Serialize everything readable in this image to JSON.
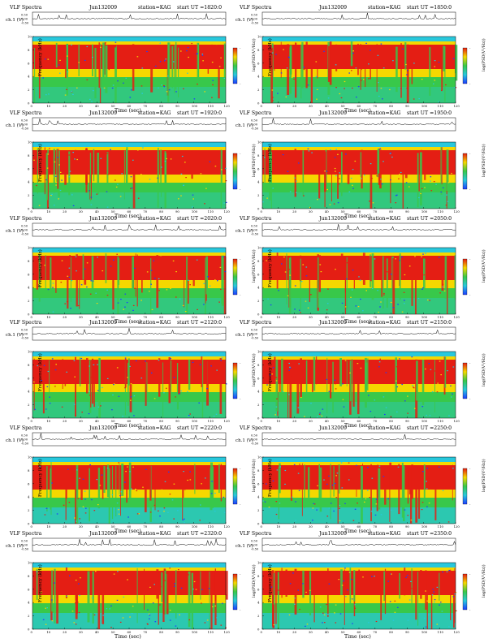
{
  "page": {
    "common": {
      "ch_axis_label": "ch.1 (V)",
      "ch_ticks": [
        "0.50",
        "0.00",
        "-0.50"
      ],
      "freq_axis_label": "Frequency (kHz)",
      "freq_ticks": [
        "0",
        "2",
        "4",
        "6",
        "8",
        "10"
      ],
      "time_axis_label": "Time (sec)",
      "time_ticks": [
        "0",
        "10",
        "20",
        "30",
        "40",
        "50",
        "60",
        "70",
        "80",
        "90",
        "100",
        "110",
        "120"
      ],
      "colorbar_label": "log(PSD(V²/Hz))",
      "colorbar_ticks": [
        "-",
        "-"
      ],
      "panel_prefix": "VLF Spectra",
      "station_text": "station=KAG",
      "colors": {
        "saturated": "#e41e14",
        "high": "#f5d800",
        "mid": "#38c84a",
        "low": "#28c8dc",
        "very_low": "#1e3cff",
        "trace": "#000000"
      }
    }
  },
  "panels": [
    {
      "title": "VLF Spectra",
      "date": "Jun132009",
      "station": "station=KAG",
      "start": "start UT =1820:0",
      "ch_label": "ch.1 (V)",
      "freq_label": "Frequency (kHz)",
      "time_label": "Time (sec)",
      "colorbar_label": "log(PSD(V²/Hz))"
    },
    {
      "title": "VLF Spectra",
      "date": "Jun132009",
      "station": "station=KAG",
      "start": "start UT =1850:0",
      "ch_label": "ch.1 (V)",
      "freq_label": "Frequency (kHz)",
      "time_label": "Time (sec)",
      "colorbar_label": "log(PSD(V²/Hz))"
    },
    {
      "title": "VLF Spectra",
      "date": "Jun132009",
      "station": "station=KAG",
      "start": "start UT =1920:0",
      "ch_label": "ch.1 (V)",
      "freq_label": "Frequency (kHz)",
      "time_label": "Time (sec)",
      "colorbar_label": "log(PSD(V²/Hz))"
    },
    {
      "title": "VLF Spectra",
      "date": "Jun132009",
      "station": "station=KAG",
      "start": "start UT =1950:0",
      "ch_label": "ch.1 (V)",
      "freq_label": "Frequency (kHz)",
      "time_label": "Time (sec)",
      "colorbar_label": "log(PSD(V²/Hz))"
    },
    {
      "title": "VLF Spectra",
      "date": "Jun132009",
      "station": "station=KAG",
      "start": "start UT =2020:0",
      "ch_label": "ch.1 (V)",
      "freq_label": "Frequency (kHz)",
      "time_label": "Time (sec)",
      "colorbar_label": "log(PSD(V²/Hz))"
    },
    {
      "title": "VLF Spectra",
      "date": "Jun132009",
      "station": "station=KAG",
      "start": "start UT =2050:0",
      "ch_label": "ch.1 (V)",
      "freq_label": "Frequency (kHz)",
      "time_label": "Time (sec)",
      "colorbar_label": "log(PSD(V²/Hz))"
    },
    {
      "title": "VLF Spectra",
      "date": "Jun132009",
      "station": "station=KAG",
      "start": "start UT =2120:0",
      "ch_label": "ch.1 (V)",
      "freq_label": "Frequency (kHz)",
      "time_label": "Time (sec)",
      "colorbar_label": "log(PSD(V²/Hz))"
    },
    {
      "title": "VLF Spectra",
      "date": "Jun132009",
      "station": "station=KAG",
      "start": "start UT =2150:0",
      "ch_label": "ch.1 (V)",
      "freq_label": "Frequency (kHz)",
      "time_label": "Time (sec)",
      "colorbar_label": "log(PSD(V²/Hz))"
    },
    {
      "title": "VLF Spectra",
      "date": "Jun132009",
      "station": "station=KAG",
      "start": "start UT =2220:0",
      "ch_label": "ch.1 (V)",
      "freq_label": "Frequency (kHz)",
      "time_label": "Time (sec)",
      "colorbar_label": "log(PSD(V²/Hz))"
    },
    {
      "title": "VLF Spectra",
      "date": "Jun132009",
      "station": "station=KAG",
      "start": "start UT =2250:0",
      "ch_label": "ch.1 (V)",
      "freq_label": "Frequency (kHz)",
      "time_label": "Time (sec)",
      "colorbar_label": "log(PSD(V²/Hz))"
    },
    {
      "title": "VLF Spectra",
      "date": "Jun132009",
      "station": "station=KAG",
      "start": "start UT =2320:0",
      "ch_label": "ch.1 (V)",
      "freq_label": "Frequency (kHz)",
      "time_label": "Time (sec)",
      "colorbar_label": "log(PSD(V²/Hz))"
    },
    {
      "title": "VLF Spectra",
      "date": "Jun132009",
      "station": "station=KAG",
      "start": "start UT =2350:0",
      "ch_label": "ch.1 (V)",
      "freq_label": "Frequency (kHz)",
      "time_label": "Time (sec)",
      "colorbar_label": "log(PSD(V²/Hz))"
    }
  ],
  "chart_data": {
    "type": "heatmap",
    "layout": "6 rows x 2 columns of VLF spectrogram panels",
    "x_axis": {
      "label": "Time (sec)",
      "range": [
        0,
        120
      ],
      "ticks": [
        0,
        10,
        20,
        30,
        40,
        50,
        60,
        70,
        80,
        90,
        100,
        110,
        120
      ]
    },
    "y_axis": {
      "label": "Frequency (kHz)",
      "range": [
        0,
        10
      ],
      "ticks": [
        0,
        2,
        4,
        6,
        8,
        10
      ]
    },
    "waveform_axis": {
      "label": "ch.1 (V)",
      "range": [
        -0.5,
        0.5
      ],
      "ticks": [
        0.5,
        0.0,
        -0.5
      ]
    },
    "colorbar": {
      "label": "log(PSD(V²/Hz))",
      "scale": "blue (low) → cyan → green → yellow → red (high)"
    },
    "station": "KAG",
    "date": "Jun132009",
    "panel_start_times_ut": [
      "1820:0",
      "1850:0",
      "1920:0",
      "1950:0",
      "2020:0",
      "2050:0",
      "2120:0",
      "2150:0",
      "2220:0",
      "2250:0",
      "2320:0",
      "2350:0"
    ],
    "panel_duration_sec": 120
  }
}
